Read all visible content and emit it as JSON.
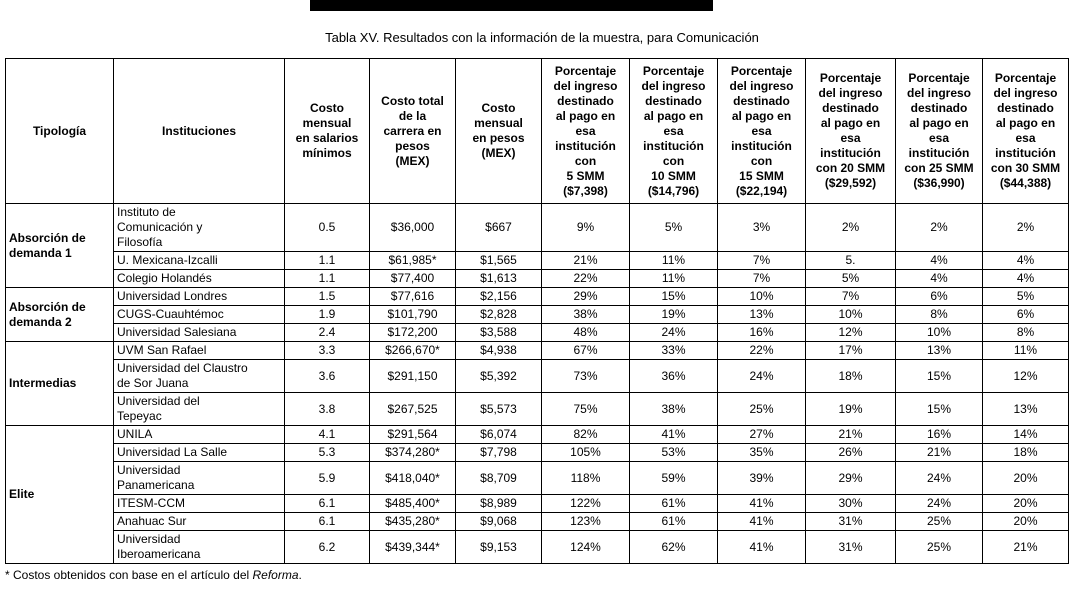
{
  "title": "Tabla XV. Resultados con la información de la muestra, para Comunicación",
  "footnote": {
    "prefix": "* Costos obtenidos con base en el artículo del ",
    "italic": "Reforma",
    "suffix": "."
  },
  "table": {
    "columns": [
      "Tipología",
      "Instituciones",
      "Costo\nmensual\nen salarios\nmínimos",
      "Costo total\nde la\ncarrera en\npesos\n(MEX)",
      "Costo\nmensual\nen pesos\n(MEX)",
      "Porcentaje\ndel ingreso\ndestinado\nal pago en\nesa\ninstitución\ncon\n5 SMM\n($7,398)",
      "Porcentaje\ndel ingreso\ndestinado\nal pago en\nesa\ninstitución\ncon\n10 SMM\n($14,796)",
      "Porcentaje\ndel ingreso\ndestinado\nal pago en\nesa\ninstitución\ncon\n15 SMM\n($22,194)",
      "Porcentaje\ndel ingreso\ndestinado\nal pago en\nesa\ninstitución\ncon 20 SMM\n($29,592)",
      "Porcentaje\ndel ingreso\ndestinado\nal pago en\nesa\ninstitución\ncon 25 SMM\n($36,990)",
      "Porcentaje\ndel ingreso\ndestinado\nal pago en\nesa\ninstitución\ncon 30 SMM\n($44,388)"
    ],
    "groups": [
      {
        "tipologia": "Absorción de\ndemanda 1",
        "rows": [
          {
            "institucion": "Instituto de\nComunicación y\nFilosofía",
            "values": [
              "0.5",
              "$36,000",
              "$667",
              "9%",
              "5%",
              "3%",
              "2%",
              "2%",
              "2%"
            ]
          },
          {
            "institucion": "U. Mexicana-Izcalli",
            "values": [
              "1.1",
              "$61,985*",
              "$1,565",
              "21%",
              "11%",
              "7%",
              "5.",
              "4%",
              "4%"
            ]
          },
          {
            "institucion": "Colegio Holandés",
            "values": [
              "1.1",
              "$77,400",
              "$1,613",
              "22%",
              "11%",
              "7%",
              "5%",
              "4%",
              "4%"
            ]
          }
        ]
      },
      {
        "tipologia": "Absorción de\ndemanda 2",
        "rows": [
          {
            "institucion": "Universidad Londres",
            "values": [
              "1.5",
              "$77,616",
              "$2,156",
              "29%",
              "15%",
              "10%",
              "7%",
              "6%",
              "5%"
            ]
          },
          {
            "institucion": "CUGS-Cuauhtémoc",
            "values": [
              "1.9",
              "$101,790",
              "$2,828",
              "38%",
              "19%",
              "13%",
              "10%",
              "8%",
              "6%"
            ]
          },
          {
            "institucion": "Universidad Salesiana",
            "values": [
              "2.4",
              "$172,200",
              "$3,588",
              "48%",
              "24%",
              "16%",
              "12%",
              "10%",
              "8%"
            ]
          }
        ]
      },
      {
        "tipologia": "Intermedias",
        "rows": [
          {
            "institucion": "UVM San Rafael",
            "values": [
              "3.3",
              "$266,670*",
              "$4,938",
              "67%",
              "33%",
              "22%",
              "17%",
              "13%",
              "11%"
            ]
          },
          {
            "institucion": "Universidad del Claustro\nde Sor Juana",
            "values": [
              "3.6",
              "$291,150",
              "$5,392",
              "73%",
              "36%",
              "24%",
              "18%",
              "15%",
              "12%"
            ]
          },
          {
            "institucion": "Universidad del\nTepeyac",
            "values": [
              "3.8",
              "$267,525",
              "$5,573",
              "75%",
              "38%",
              "25%",
              "19%",
              "15%",
              "13%"
            ]
          }
        ]
      },
      {
        "tipologia": "Elite",
        "rows": [
          {
            "institucion": "UNILA",
            "values": [
              "4.1",
              "$291,564",
              "$6,074",
              "82%",
              "41%",
              "27%",
              "21%",
              "16%",
              "14%"
            ]
          },
          {
            "institucion": "Universidad La Salle",
            "values": [
              "5.3",
              "$374,280*",
              "$7,798",
              "105%",
              "53%",
              "35%",
              "26%",
              "21%",
              "18%"
            ]
          },
          {
            "institucion": "Universidad\nPanamericana",
            "values": [
              "5.9",
              "$418,040*",
              "$8,709",
              "118%",
              "59%",
              "39%",
              "29%",
              "24%",
              "20%"
            ]
          },
          {
            "institucion": "ITESM-CCM",
            "values": [
              "6.1",
              "$485,400*",
              "$8,989",
              "122%",
              "61%",
              "41%",
              "30%",
              "24%",
              "20%"
            ]
          },
          {
            "institucion": "Anahuac Sur",
            "values": [
              "6.1",
              "$435,280*",
              "$9,068",
              "123%",
              "61%",
              "41%",
              "31%",
              "25%",
              "20%"
            ]
          },
          {
            "institucion": "Universidad\nIberoamericana",
            "values": [
              "6.2",
              "$439,344*",
              "$9,153",
              "124%",
              "62%",
              "41%",
              "31%",
              "25%",
              "21%"
            ]
          }
        ]
      }
    ]
  }
}
